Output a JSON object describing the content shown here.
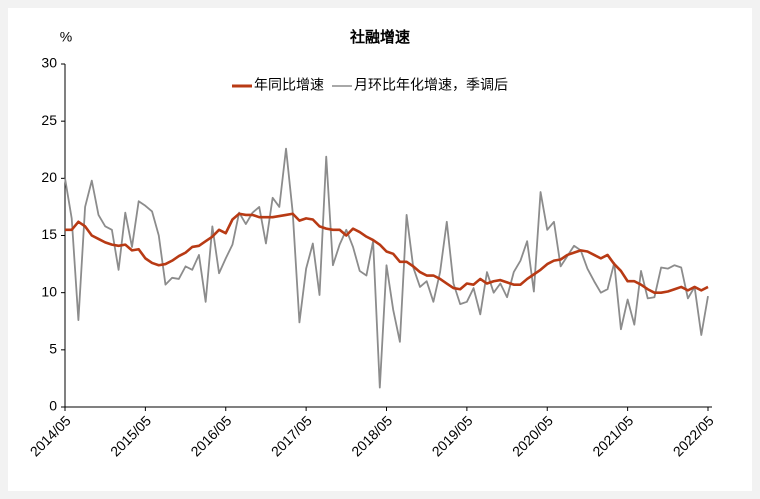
{
  "chart_data": {
    "type": "line",
    "title": "社融增速",
    "y_label": "%",
    "categories": [
      "2014/05",
      null,
      null,
      null,
      null,
      null,
      null,
      null,
      null,
      null,
      null,
      null,
      "2015/05",
      null,
      null,
      null,
      null,
      null,
      null,
      null,
      null,
      null,
      null,
      null,
      "2016/05",
      null,
      null,
      null,
      null,
      null,
      null,
      null,
      null,
      null,
      null,
      null,
      "2017/05",
      null,
      null,
      null,
      null,
      null,
      null,
      null,
      null,
      null,
      null,
      null,
      "2018/05",
      null,
      null,
      null,
      null,
      null,
      null,
      null,
      null,
      null,
      null,
      null,
      "2019/05",
      null,
      null,
      null,
      null,
      null,
      null,
      null,
      null,
      null,
      null,
      null,
      "2020/05",
      null,
      null,
      null,
      null,
      null,
      null,
      null,
      null,
      null,
      null,
      null,
      "2021/05",
      null,
      null,
      null,
      null,
      null,
      null,
      null,
      null,
      null,
      null,
      null,
      "2022/05"
    ],
    "series": [
      {
        "name": "年同比增速",
        "color": "#b83a14",
        "values": [
          15.5,
          15.5,
          16.2,
          15.8,
          15.0,
          14.7,
          14.4,
          14.2,
          14.1,
          14.2,
          13.7,
          13.8,
          13.0,
          12.6,
          12.4,
          12.5,
          12.8,
          13.2,
          13.5,
          14.0,
          14.1,
          14.5,
          14.9,
          15.5,
          15.2,
          16.4,
          16.9,
          16.8,
          16.8,
          16.6,
          16.6,
          16.6,
          16.7,
          16.8,
          16.9,
          16.3,
          16.5,
          16.4,
          15.8,
          15.6,
          15.5,
          15.5,
          15.0,
          15.6,
          15.3,
          14.9,
          14.6,
          14.2,
          13.6,
          13.4,
          12.7,
          12.7,
          12.3,
          11.8,
          11.5,
          11.5,
          11.2,
          10.8,
          10.4,
          10.3,
          10.8,
          10.7,
          11.2,
          10.8,
          11.0,
          11.1,
          10.9,
          10.7,
          10.7,
          11.2,
          11.6,
          12.0,
          12.5,
          12.8,
          12.9,
          13.3,
          13.5,
          13.7,
          13.6,
          13.3,
          13.0,
          13.3,
          12.5,
          11.9,
          11.0,
          11.0,
          10.7,
          10.3,
          10.0,
          10.0,
          10.1,
          10.3,
          10.5,
          10.2,
          10.5,
          10.2,
          10.5
        ]
      },
      {
        "name": "月环比年化增速，季调后",
        "color": "#8c8c8c",
        "values": [
          20.0,
          16.5,
          7.6,
          17.5,
          19.8,
          16.8,
          15.8,
          15.5,
          12.0,
          17.0,
          14.0,
          18.0,
          17.6,
          17.1,
          15.0,
          10.7,
          11.3,
          11.2,
          12.3,
          12.0,
          13.3,
          9.2,
          15.8,
          11.7,
          13.0,
          14.2,
          17.0,
          16.0,
          17.0,
          17.5,
          14.3,
          18.3,
          17.5,
          22.6,
          17.0,
          7.4,
          12.1,
          14.3,
          9.8,
          21.9,
          12.4,
          14.2,
          15.5,
          14.0,
          11.9,
          11.5,
          14.5,
          1.7,
          12.4,
          8.5,
          5.7,
          16.8,
          12.2,
          10.5,
          11.0,
          9.2,
          11.8,
          16.2,
          10.8,
          9.0,
          9.2,
          10.4,
          8.1,
          11.8,
          10.0,
          10.8,
          9.6,
          11.8,
          12.8,
          14.5,
          10.1,
          18.8,
          15.5,
          16.2,
          12.3,
          13.2,
          14.1,
          13.7,
          12.1,
          11.0,
          10.0,
          10.3,
          12.6,
          6.8,
          9.4,
          7.2,
          11.9,
          9.5,
          9.6,
          12.2,
          12.1,
          12.4,
          12.2,
          9.5,
          10.5,
          6.3,
          9.7
        ]
      }
    ],
    "ylim": [
      0,
      30
    ],
    "yticks": [
      0,
      5,
      10,
      15,
      20,
      25,
      30
    ]
  }
}
